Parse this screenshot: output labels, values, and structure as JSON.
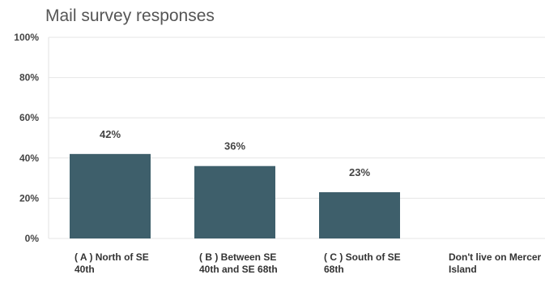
{
  "chart_data": {
    "type": "bar",
    "title": "Mail survey responses",
    "categories": [
      "( A ) North of SE 40th",
      "( B ) Between SE 40th and SE 68th",
      "( C ) South of SE 68th",
      "Don't live on Mercer Island"
    ],
    "values": [
      42,
      36,
      23,
      0
    ],
    "data_labels": [
      "42%",
      "36%",
      "23%",
      ""
    ],
    "ylim": [
      0,
      100
    ],
    "yticks": [
      0,
      20,
      40,
      60,
      80,
      100
    ],
    "ytick_labels": [
      "0%",
      "20%",
      "40%",
      "60%",
      "80%",
      "100%"
    ],
    "xlabel": "",
    "ylabel": "",
    "grid": true,
    "legend": "none",
    "bar_color": "#3e5f6b",
    "gridline_color": "#e6e6e6"
  }
}
